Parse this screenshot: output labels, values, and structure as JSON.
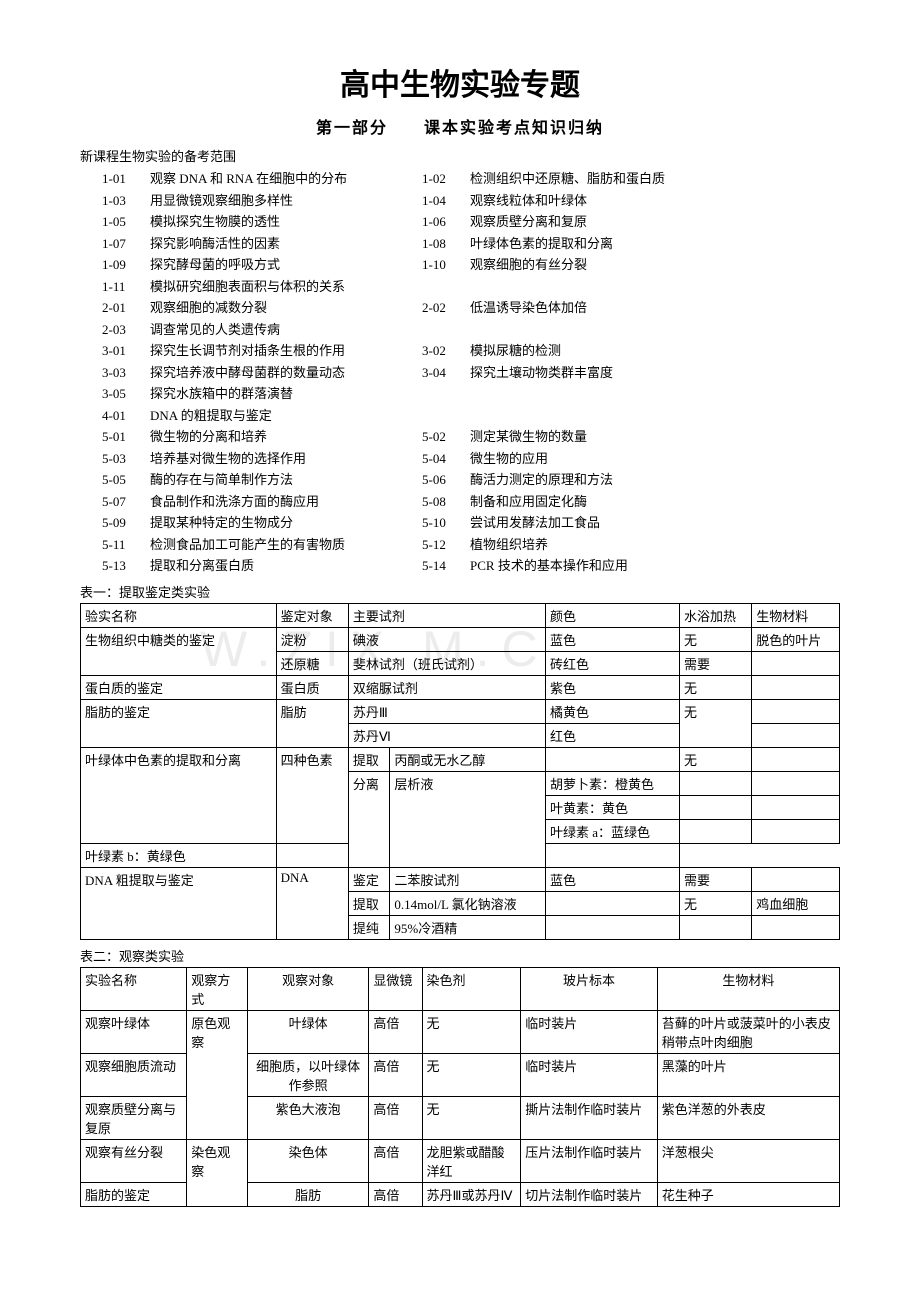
{
  "title": "高中生物实验专题",
  "subtitle": "第一部分　　课本实验考点知识归纳",
  "scope_heading": "新课程生物实验的备考范围",
  "list": [
    {
      "l_code": "1-01",
      "l_desc": "观察 DNA 和 RNA 在细胞中的分布",
      "r_code": "1-02",
      "r_desc": "检测组织中还原糖、脂肪和蛋白质"
    },
    {
      "l_code": "1-03",
      "l_desc": "用显微镜观察细胞多样性",
      "r_code": "1-04",
      "r_desc": "观察线粒体和叶绿体"
    },
    {
      "l_code": "1-05",
      "l_desc": "模拟探究生物膜的透性",
      "r_code": "1-06",
      "r_desc": "观察质壁分离和复原"
    },
    {
      "l_code": "1-07",
      "l_desc": "探究影响酶活性的因素",
      "r_code": "1-08",
      "r_desc": "叶绿体色素的提取和分离"
    },
    {
      "l_code": "1-09",
      "l_desc": "探究酵母菌的呼吸方式",
      "r_code": " 1-10",
      "r_desc": " 观察细胞的有丝分裂"
    },
    {
      "l_code": "1-11",
      "l_desc": "模拟研究细胞表面积与体积的关系",
      "r_code": "",
      "r_desc": ""
    },
    {
      "l_code": "2-01",
      "l_desc": "观察细胞的减数分裂",
      "r_code": " 2-02",
      "r_desc": "低温诱导染色体加倍"
    },
    {
      "l_code": "2-03",
      "l_desc": "调查常见的人类遗传病",
      "r_code": "",
      "r_desc": ""
    },
    {
      "l_code": "3-01",
      "l_desc": "探究生长调节剂对插条生根的作用",
      "r_code": "3-02",
      "r_desc": "模拟尿糖的检测"
    },
    {
      "l_code": "3-03",
      "l_desc": "探究培养液中酵母菌群的数量动态",
      "r_code": "3-04",
      "r_desc": "探究土壤动物类群丰富度"
    },
    {
      "l_code": "3-05",
      "l_desc": "探究水族箱中的群落演替",
      "r_code": "",
      "r_desc": ""
    },
    {
      "l_code": "4-01",
      "l_desc": "DNA 的粗提取与鉴定",
      "r_code": "",
      "r_desc": ""
    },
    {
      "l_code": "5-01",
      "l_desc": "微生物的分离和培养",
      "r_code": "5-02",
      "r_desc": "测定某微生物的数量"
    },
    {
      "l_code": "5-03",
      "l_desc": "培养基对微生物的选择作用",
      "r_code": "5-04",
      "r_desc": "微生物的应用"
    },
    {
      "l_code": "5-05",
      "l_desc": "酶的存在与简单制作方法",
      "r_code": "5-06",
      "r_desc": "酶活力测定的原理和方法"
    },
    {
      "l_code": "5-07",
      "l_desc": "食品制作和洗涤方面的酶应用",
      "r_code": "5-08",
      "r_desc": "制备和应用固定化酶"
    },
    {
      "l_code": "5-09",
      "l_desc": "提取某种特定的生物成分",
      "r_code": "5-10",
      "r_desc": "尝试用发酵法加工食品"
    },
    {
      "l_code": "5-11",
      "l_desc": "检测食品加工可能产生的有害物质",
      "r_code": "5-12",
      "r_desc": "植物组织培养"
    },
    {
      "l_code": "5-13",
      "l_desc": "提取和分离蛋白质",
      "r_code": "5-14",
      "r_desc": "PCR 技术的基本操作和应用"
    }
  ],
  "table1": {
    "caption": "表一：提取鉴定类实验",
    "header": [
      "验实名称",
      "鉴定对象",
      "主要试剂",
      "",
      "颜色",
      "水浴加热",
      "生物材料"
    ],
    "rows": [
      {
        "c": [
          "生物组织中糖类的鉴定",
          "淀粉",
          "碘液",
          "",
          "蓝色",
          "无",
          "脱色的叶片"
        ],
        "rs": [
          2,
          1,
          1,
          0,
          1,
          1,
          1
        ]
      },
      {
        "c": [
          "",
          "还原糖",
          "斐林试剂（班氏试剂）",
          "",
          "砖红色",
          "需要",
          ""
        ],
        "rs": [
          0,
          1,
          1,
          0,
          1,
          1,
          1
        ]
      },
      {
        "c": [
          "蛋白质的鉴定",
          "蛋白质",
          "双缩脲试剂",
          "",
          "紫色",
          "无",
          ""
        ],
        "rs": [
          1,
          1,
          1,
          0,
          1,
          1,
          1
        ]
      },
      {
        "c": [
          "脂肪的鉴定",
          "脂肪",
          "苏丹Ⅲ",
          "",
          "橘黄色",
          "无",
          ""
        ],
        "rs": [
          2,
          2,
          1,
          0,
          1,
          2,
          1
        ]
      },
      {
        "c": [
          "",
          "",
          "苏丹Ⅵ",
          "",
          "红色",
          "",
          ""
        ],
        "rs": [
          0,
          0,
          1,
          0,
          1,
          0,
          1
        ]
      },
      {
        "c": [
          "叶绿体中色素的提取和分离",
          "四种色素",
          "提取",
          "丙酮或无水乙醇",
          "",
          "无",
          ""
        ],
        "rs": [
          4,
          4,
          1,
          1,
          1,
          1,
          1
        ]
      },
      {
        "c": [
          "",
          "",
          "分离",
          "层析液",
          "胡萝卜素：橙黄色",
          "",
          ""
        ],
        "rs": [
          0,
          0,
          4,
          4,
          1,
          1,
          1
        ]
      },
      {
        "c": [
          "",
          "",
          "",
          "",
          "叶黄素：黄色",
          "",
          ""
        ],
        "rs": [
          0,
          0,
          0,
          0,
          1,
          1,
          1
        ]
      },
      {
        "c": [
          "",
          "",
          "",
          "",
          "叶绿素 a：蓝绿色",
          "",
          ""
        ],
        "rs": [
          0,
          0,
          0,
          0,
          1,
          1,
          1
        ]
      },
      {
        "c": [
          "",
          "",
          "",
          "",
          "叶绿素 b：黄绿色",
          "",
          ""
        ],
        "rs": [
          0,
          0,
          0,
          0,
          1,
          1,
          1
        ]
      },
      {
        "c": [
          "DNA 粗提取与鉴定",
          "DNA",
          "鉴定",
          "二苯胺试剂",
          "蓝色",
          "需要",
          ""
        ],
        "rs": [
          3,
          3,
          1,
          1,
          1,
          1,
          1
        ]
      },
      {
        "c": [
          "",
          "",
          "提取",
          "0.14mol/L 氯化钠溶液",
          "",
          "无",
          "鸡血细胞"
        ],
        "rs": [
          0,
          0,
          1,
          1,
          1,
          1,
          1
        ]
      },
      {
        "c": [
          "",
          "",
          "提纯",
          "95%冷酒精",
          "",
          "",
          ""
        ],
        "rs": [
          0,
          0,
          1,
          1,
          1,
          1,
          1
        ]
      }
    ],
    "col3colspan": [
      true,
      true,
      true,
      true,
      true,
      false,
      false,
      false,
      false,
      false,
      false,
      false,
      false
    ]
  },
  "table2": {
    "caption": "表二：观察类实验",
    "header": [
      "实验名称",
      "观察方式",
      "观察对象",
      "显微镜",
      "染色剂",
      "玻片标本",
      "生物材料"
    ],
    "rows": [
      [
        "观察叶绿体",
        "原色观察",
        "叶绿体",
        "高倍",
        "无",
        "临时装片",
        "苔藓的叶片或菠菜叶的小表皮稍带点叶肉细胞"
      ],
      [
        "观察细胞质流动",
        "",
        "细胞质，以叶绿体作参照",
        "高倍",
        "无",
        "临时装片",
        "黑藻的叶片"
      ],
      [
        "观察质壁分离与复原",
        "",
        "紫色大液泡",
        "高倍",
        "无",
        "撕片法制作临时装片",
        "紫色洋葱的外表皮"
      ],
      [
        "观察有丝分裂",
        "染色观察",
        "染色体",
        "高倍",
        "龙胆紫或醋酸洋红",
        "压片法制作临时装片",
        "洋葱根尖"
      ],
      [
        "脂肪的鉴定",
        "",
        "脂肪",
        "高倍",
        "苏丹Ⅲ或苏丹Ⅳ",
        "切片法制作临时装片",
        "花生种子"
      ]
    ],
    "obs_rowspans": [
      3,
      0,
      0,
      2,
      0
    ]
  },
  "watermark": "W.ZIX  M.C"
}
